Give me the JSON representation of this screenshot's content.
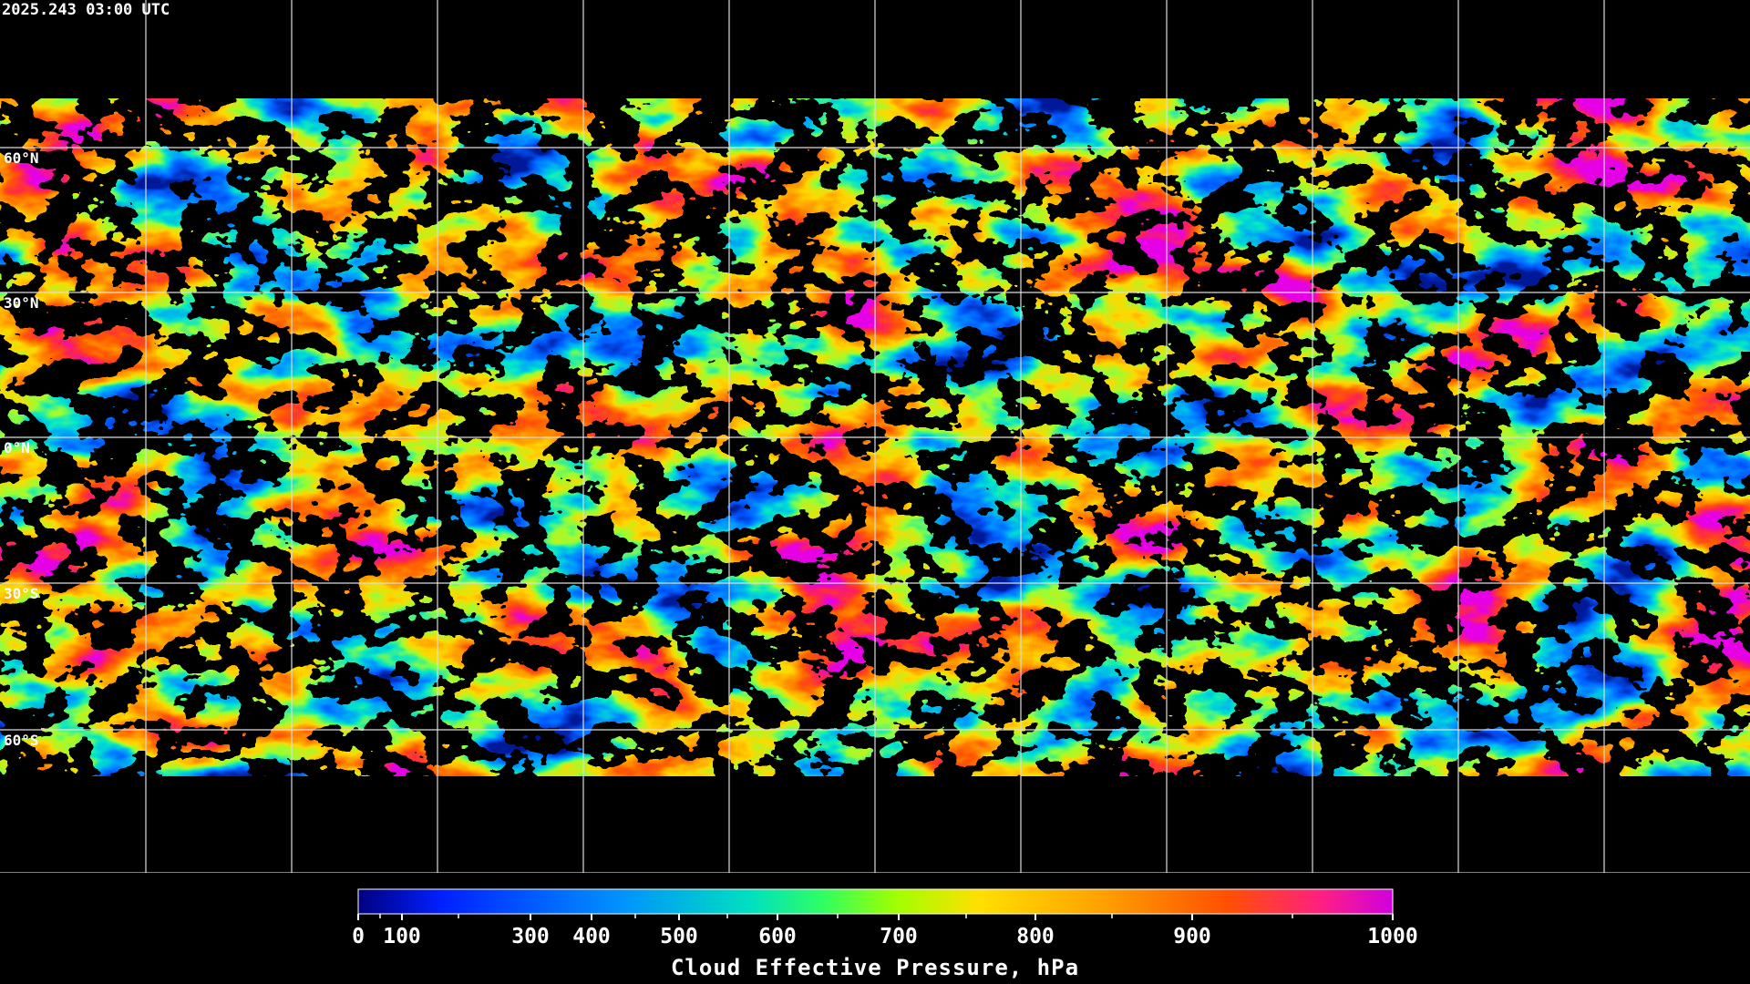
{
  "header": {
    "timestamp": "2025.243 03:00 UTC"
  },
  "map": {
    "latitude_labels": [
      "60°N",
      "30°N",
      "0°N",
      "30°S",
      "60°S"
    ]
  },
  "colorbar": {
    "ticks": [
      0,
      100,
      300,
      400,
      500,
      600,
      700,
      800,
      900,
      1000
    ],
    "title": "Cloud Effective Pressure, hPa"
  }
}
